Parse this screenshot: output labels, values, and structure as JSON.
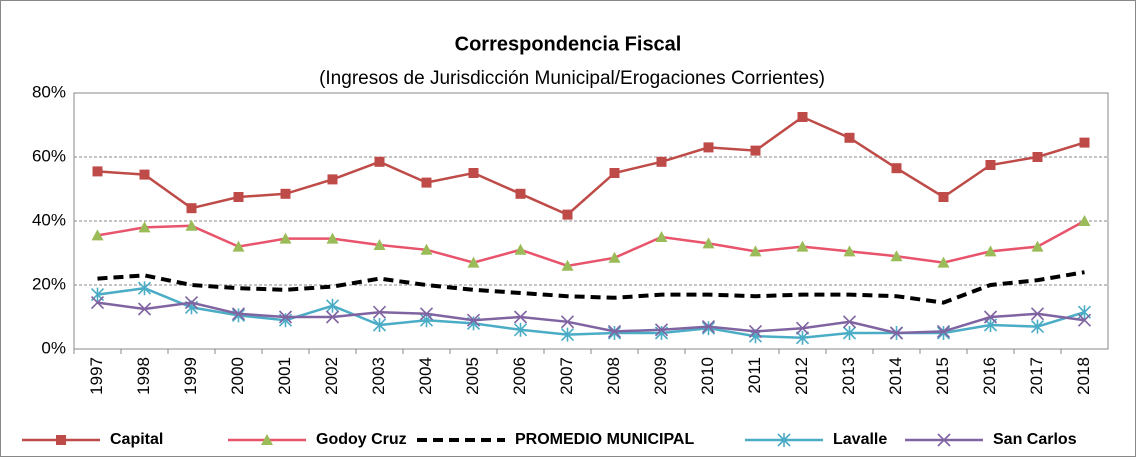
{
  "chart_data": {
    "type": "line",
    "title": "Correspondencia Fiscal",
    "subtitle": "(Ingresos de Jurisdicción Municipal/Erogaciones Corrientes)",
    "categories": [
      "1997",
      "1998",
      "1999",
      "2000",
      "2001",
      "2002",
      "2003",
      "2004",
      "2005",
      "2006",
      "2007",
      "2008",
      "2009",
      "2010",
      "2011",
      "2012",
      "2013",
      "2014",
      "2015",
      "2016",
      "2017",
      "2018"
    ],
    "ylim": [
      0,
      80
    ],
    "yticks": [
      {
        "value": 0,
        "label": "0%"
      },
      {
        "value": 20,
        "label": "20%"
      },
      {
        "value": 40,
        "label": "40%"
      },
      {
        "value": 60,
        "label": "60%"
      },
      {
        "value": 80,
        "label": "80%"
      }
    ],
    "grid": true,
    "legend": "bottom",
    "series": [
      {
        "name": "Capital",
        "color": "#be4b48",
        "marker": "square",
        "marker_color": "#be4b48",
        "line_style": "solid",
        "values": [
          55.5,
          54.5,
          44,
          47.5,
          48.5,
          53,
          58.5,
          52,
          55,
          48.5,
          42,
          55,
          58.5,
          63,
          62,
          72.5,
          66,
          56.5,
          47.5,
          57.5,
          60,
          64.5
        ]
      },
      {
        "name": "Godoy Cruz",
        "color": "#e8546b",
        "marker": "triangle",
        "marker_color": "#9bbb59",
        "line_style": "solid",
        "values": [
          35.5,
          38,
          38.5,
          32,
          34.5,
          34.5,
          32.5,
          31,
          27,
          31,
          26,
          28.5,
          35,
          33,
          30.5,
          32,
          30.5,
          29,
          27,
          30.5,
          32,
          40
        ]
      },
      {
        "name": "PROMEDIO MUNICIPAL",
        "color": "#000000",
        "marker": "none",
        "marker_color": "#000000",
        "line_style": "dashed",
        "values": [
          22,
          23,
          20,
          19,
          18.5,
          19.5,
          22,
          20,
          18.5,
          17.5,
          16.5,
          16,
          17,
          17,
          16.5,
          17,
          17,
          16.5,
          14.5,
          20,
          21.5,
          24
        ]
      },
      {
        "name": "Lavalle",
        "color": "#4bacc6",
        "marker": "asterisk",
        "marker_color": "#4bacc6",
        "line_style": "solid",
        "values": [
          17,
          19,
          13,
          10.5,
          9,
          13.5,
          7.5,
          9,
          8,
          6,
          4.5,
          5,
          5,
          6.5,
          4,
          3.5,
          5,
          5,
          5,
          7.5,
          7,
          11.5
        ]
      },
      {
        "name": "San Carlos",
        "color": "#8064a2",
        "marker": "x",
        "marker_color": "#8064a2",
        "line_style": "solid",
        "values": [
          14.5,
          12.5,
          14.5,
          11,
          10,
          10,
          11.5,
          11,
          9,
          10,
          8.5,
          5.5,
          6,
          7,
          5.5,
          6.5,
          8.5,
          5,
          5.5,
          10,
          11,
          9
        ]
      }
    ]
  }
}
